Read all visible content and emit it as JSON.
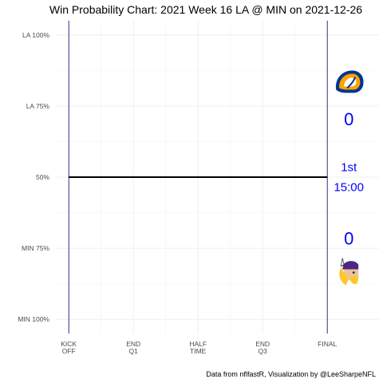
{
  "chart_data": {
    "type": "line",
    "title": "Win Probability Chart: 2021 Week 16 LA @ MIN on 2021-12-26",
    "xlabel": "",
    "ylabel": "",
    "x_ticks": [
      {
        "pos": 0,
        "line1": "KICK",
        "line2": "OFF"
      },
      {
        "pos": 15,
        "line1": "END",
        "line2": "Q1"
      },
      {
        "pos": 30,
        "line1": "HALF",
        "line2": "TIME"
      },
      {
        "pos": 45,
        "line1": "END",
        "line2": "Q3"
      },
      {
        "pos": 60,
        "line1": "FINAL",
        "line2": ""
      }
    ],
    "xlim": [
      -3,
      72
    ],
    "y_ticks": [
      {
        "value": 1.0,
        "label": "LA 100%"
      },
      {
        "value": 0.75,
        "label": "LA 75%"
      },
      {
        "value": 0.5,
        "label": "50%"
      },
      {
        "value": 0.25,
        "label": "MIN 75%"
      },
      {
        "value": 0.0,
        "label": "MIN 100%"
      }
    ],
    "ylim": [
      -0.05,
      1.05
    ],
    "grid": true,
    "series": [
      {
        "color": "#000000",
        "x": [
          0,
          60
        ],
        "y": [
          0.5,
          0.5
        ]
      }
    ],
    "vlines": [
      0,
      60
    ],
    "vline_color": "#1a1a7a",
    "annotations": {
      "away_team": "LA",
      "home_team": "MIN",
      "away_score": "0",
      "home_score": "0",
      "quarter": "1st",
      "clock": "15:00",
      "away_score_y": 0.705,
      "home_score_y": 0.285,
      "quarter_y": 0.535,
      "clock_y": 0.465,
      "away_logo_y": 0.83,
      "home_logo_y": 0.17,
      "annotation_x": 65,
      "text_color": "#0000ff",
      "la_logo_colors": {
        "navy": "#003594",
        "gold": "#ffa300"
      },
      "min_logo_colors": {
        "purple": "#4f2683",
        "gold": "#ffc62f"
      },
      "la_logo_icon": "rams-horn-logo",
      "min_logo_icon": "vikings-head-logo"
    },
    "caption": "Data from nflfastR, Visualization by @LeeSharpeNFL"
  }
}
